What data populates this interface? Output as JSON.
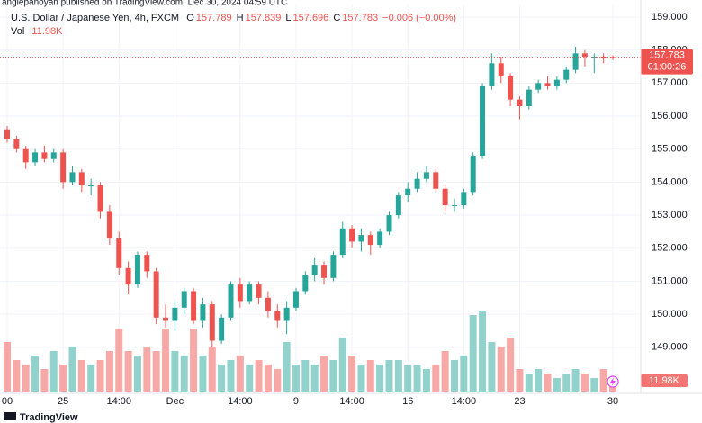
{
  "chart_data": {
    "type": "candlestick",
    "publisher": "angiepanoyan published on TradingView.com, Dec 30, 2024 04:59 UTC",
    "title": "U.S. Dollar / Japanese Yen, 4h, FXCM",
    "ohlc_labels": [
      "O",
      "H",
      "L",
      "C"
    ],
    "change": "−0.006 (−0.00%)",
    "volume_title": "Vol",
    "countdown": "01:00:26",
    "brand": "TradingView",
    "up_color": "#26a69a",
    "down_color": "#ef5350",
    "ylim": [
      147.66,
      159.38
    ],
    "yticks": [
      {
        "value": 149,
        "label": "149.000"
      },
      {
        "value": 150,
        "label": "150.000"
      },
      {
        "value": 151,
        "label": "151.000"
      },
      {
        "value": 152,
        "label": "152.000"
      },
      {
        "value": 153,
        "label": "153.000"
      },
      {
        "value": 154,
        "label": "154.000"
      },
      {
        "value": 155,
        "label": "155.000"
      },
      {
        "value": 156,
        "label": "156.000"
      },
      {
        "value": 157,
        "label": "157.000"
      },
      {
        "value": 158,
        "label": "158.000"
      },
      {
        "value": 159,
        "label": "159.000"
      }
    ],
    "grid": true,
    "categories": [
      "00",
      null,
      null,
      null,
      null,
      null,
      "25",
      null,
      null,
      null,
      null,
      null,
      "14:00",
      null,
      null,
      null,
      null,
      null,
      "Dec",
      null,
      null,
      null,
      null,
      null,
      null,
      "14:00",
      null,
      null,
      null,
      null,
      null,
      "9",
      null,
      null,
      null,
      null,
      null,
      "14:00",
      null,
      null,
      null,
      null,
      null,
      "16",
      null,
      null,
      null,
      null,
      null,
      "14:00",
      null,
      null,
      null,
      null,
      null,
      "23",
      null,
      null,
      null,
      null,
      null,
      null,
      null,
      null,
      null,
      "30"
    ],
    "open": [
      155.6,
      155.3,
      155.0,
      154.6,
      154.9,
      154.7,
      154.9,
      154.0,
      154.3,
      153.9,
      153.9,
      153.1,
      152.3,
      151.4,
      150.9,
      151.8,
      151.3,
      149.9,
      149.8,
      150.2,
      150.7,
      149.8,
      150.3,
      149.2,
      149.9,
      150.9,
      150.4,
      150.9,
      150.5,
      150.1,
      149.8,
      150.2,
      150.7,
      151.2,
      151.5,
      151.1,
      151.8,
      152.6,
      152.2,
      152.4,
      152.1,
      152.5,
      153.0,
      153.6,
      153.8,
      154.1,
      154.3,
      153.8,
      153.3,
      153.3,
      153.7,
      154.8,
      156.9,
      157.6,
      157.2,
      156.5,
      156.3,
      156.8,
      157.0,
      156.9,
      157.1,
      157.4,
      157.9,
      157.8,
      157.8,
      157.789
    ],
    "high": [
      155.7,
      155.4,
      155.1,
      155.0,
      155.1,
      155.0,
      155.0,
      154.5,
      154.4,
      154.1,
      154.0,
      153.3,
      152.5,
      151.6,
      151.9,
      151.9,
      151.4,
      150.3,
      150.4,
      150.8,
      150.8,
      150.5,
      150.4,
      150.0,
      151.0,
      151.1,
      151.0,
      151.0,
      150.7,
      150.3,
      150.4,
      150.8,
      151.3,
      151.7,
      151.6,
      151.9,
      152.8,
      152.7,
      152.6,
      152.5,
      152.6,
      153.1,
      153.7,
      154.0,
      154.3,
      154.5,
      154.4,
      153.9,
      153.5,
      153.8,
      154.9,
      157.0,
      157.9,
      157.8,
      157.3,
      156.6,
      156.9,
      157.1,
      157.2,
      157.2,
      157.5,
      158.1,
      158.0,
      157.9,
      157.9,
      157.839
    ],
    "low": [
      155.2,
      154.9,
      154.4,
      154.5,
      154.6,
      154.6,
      153.8,
      153.9,
      153.7,
      153.6,
      152.9,
      152.1,
      151.2,
      150.6,
      150.8,
      151.1,
      149.7,
      149.6,
      149.5,
      150.0,
      149.7,
      149.6,
      149.0,
      149.1,
      149.8,
      150.2,
      150.3,
      150.3,
      149.9,
      149.6,
      149.4,
      150.1,
      150.6,
      151.0,
      150.9,
      151.0,
      151.7,
      152.0,
      151.9,
      151.8,
      152.0,
      152.4,
      152.9,
      153.4,
      153.7,
      154.0,
      153.7,
      153.1,
      153.1,
      153.2,
      153.6,
      154.7,
      156.8,
      157.0,
      156.3,
      155.9,
      156.2,
      156.7,
      156.8,
      156.8,
      157.0,
      157.3,
      157.5,
      157.3,
      157.6,
      157.696
    ],
    "close": [
      155.3,
      155.0,
      154.6,
      154.9,
      154.7,
      154.9,
      154.0,
      154.3,
      153.9,
      153.9,
      153.1,
      152.3,
      151.4,
      150.9,
      151.8,
      151.3,
      149.9,
      149.8,
      150.2,
      150.7,
      149.8,
      150.3,
      149.2,
      149.9,
      150.9,
      150.4,
      150.9,
      150.5,
      150.1,
      149.8,
      150.2,
      150.7,
      151.2,
      151.5,
      151.1,
      151.8,
      152.6,
      152.2,
      152.4,
      152.1,
      152.5,
      153.0,
      153.6,
      153.8,
      154.1,
      154.3,
      153.8,
      153.3,
      153.3,
      153.7,
      154.8,
      156.9,
      157.6,
      157.2,
      156.5,
      156.3,
      156.8,
      157.0,
      156.9,
      157.1,
      157.4,
      157.9,
      157.8,
      157.8,
      157.75,
      157.783
    ],
    "volume": {
      "values": [
        55,
        35,
        30,
        40,
        25,
        45,
        30,
        50,
        35,
        30,
        35,
        45,
        70,
        45,
        40,
        50,
        45,
        70,
        45,
        40,
        70,
        40,
        50,
        30,
        35,
        40,
        30,
        35,
        30,
        25,
        55,
        30,
        35,
        30,
        40,
        35,
        60,
        40,
        30,
        35,
        30,
        35,
        35,
        30,
        30,
        25,
        30,
        45,
        35,
        40,
        85,
        90,
        55,
        50,
        60,
        25,
        20,
        25,
        20,
        15,
        20,
        25,
        20,
        15,
        25,
        11.98
      ],
      "last_label": "11.98K",
      "vlim": [
        0,
        100
      ]
    }
  }
}
